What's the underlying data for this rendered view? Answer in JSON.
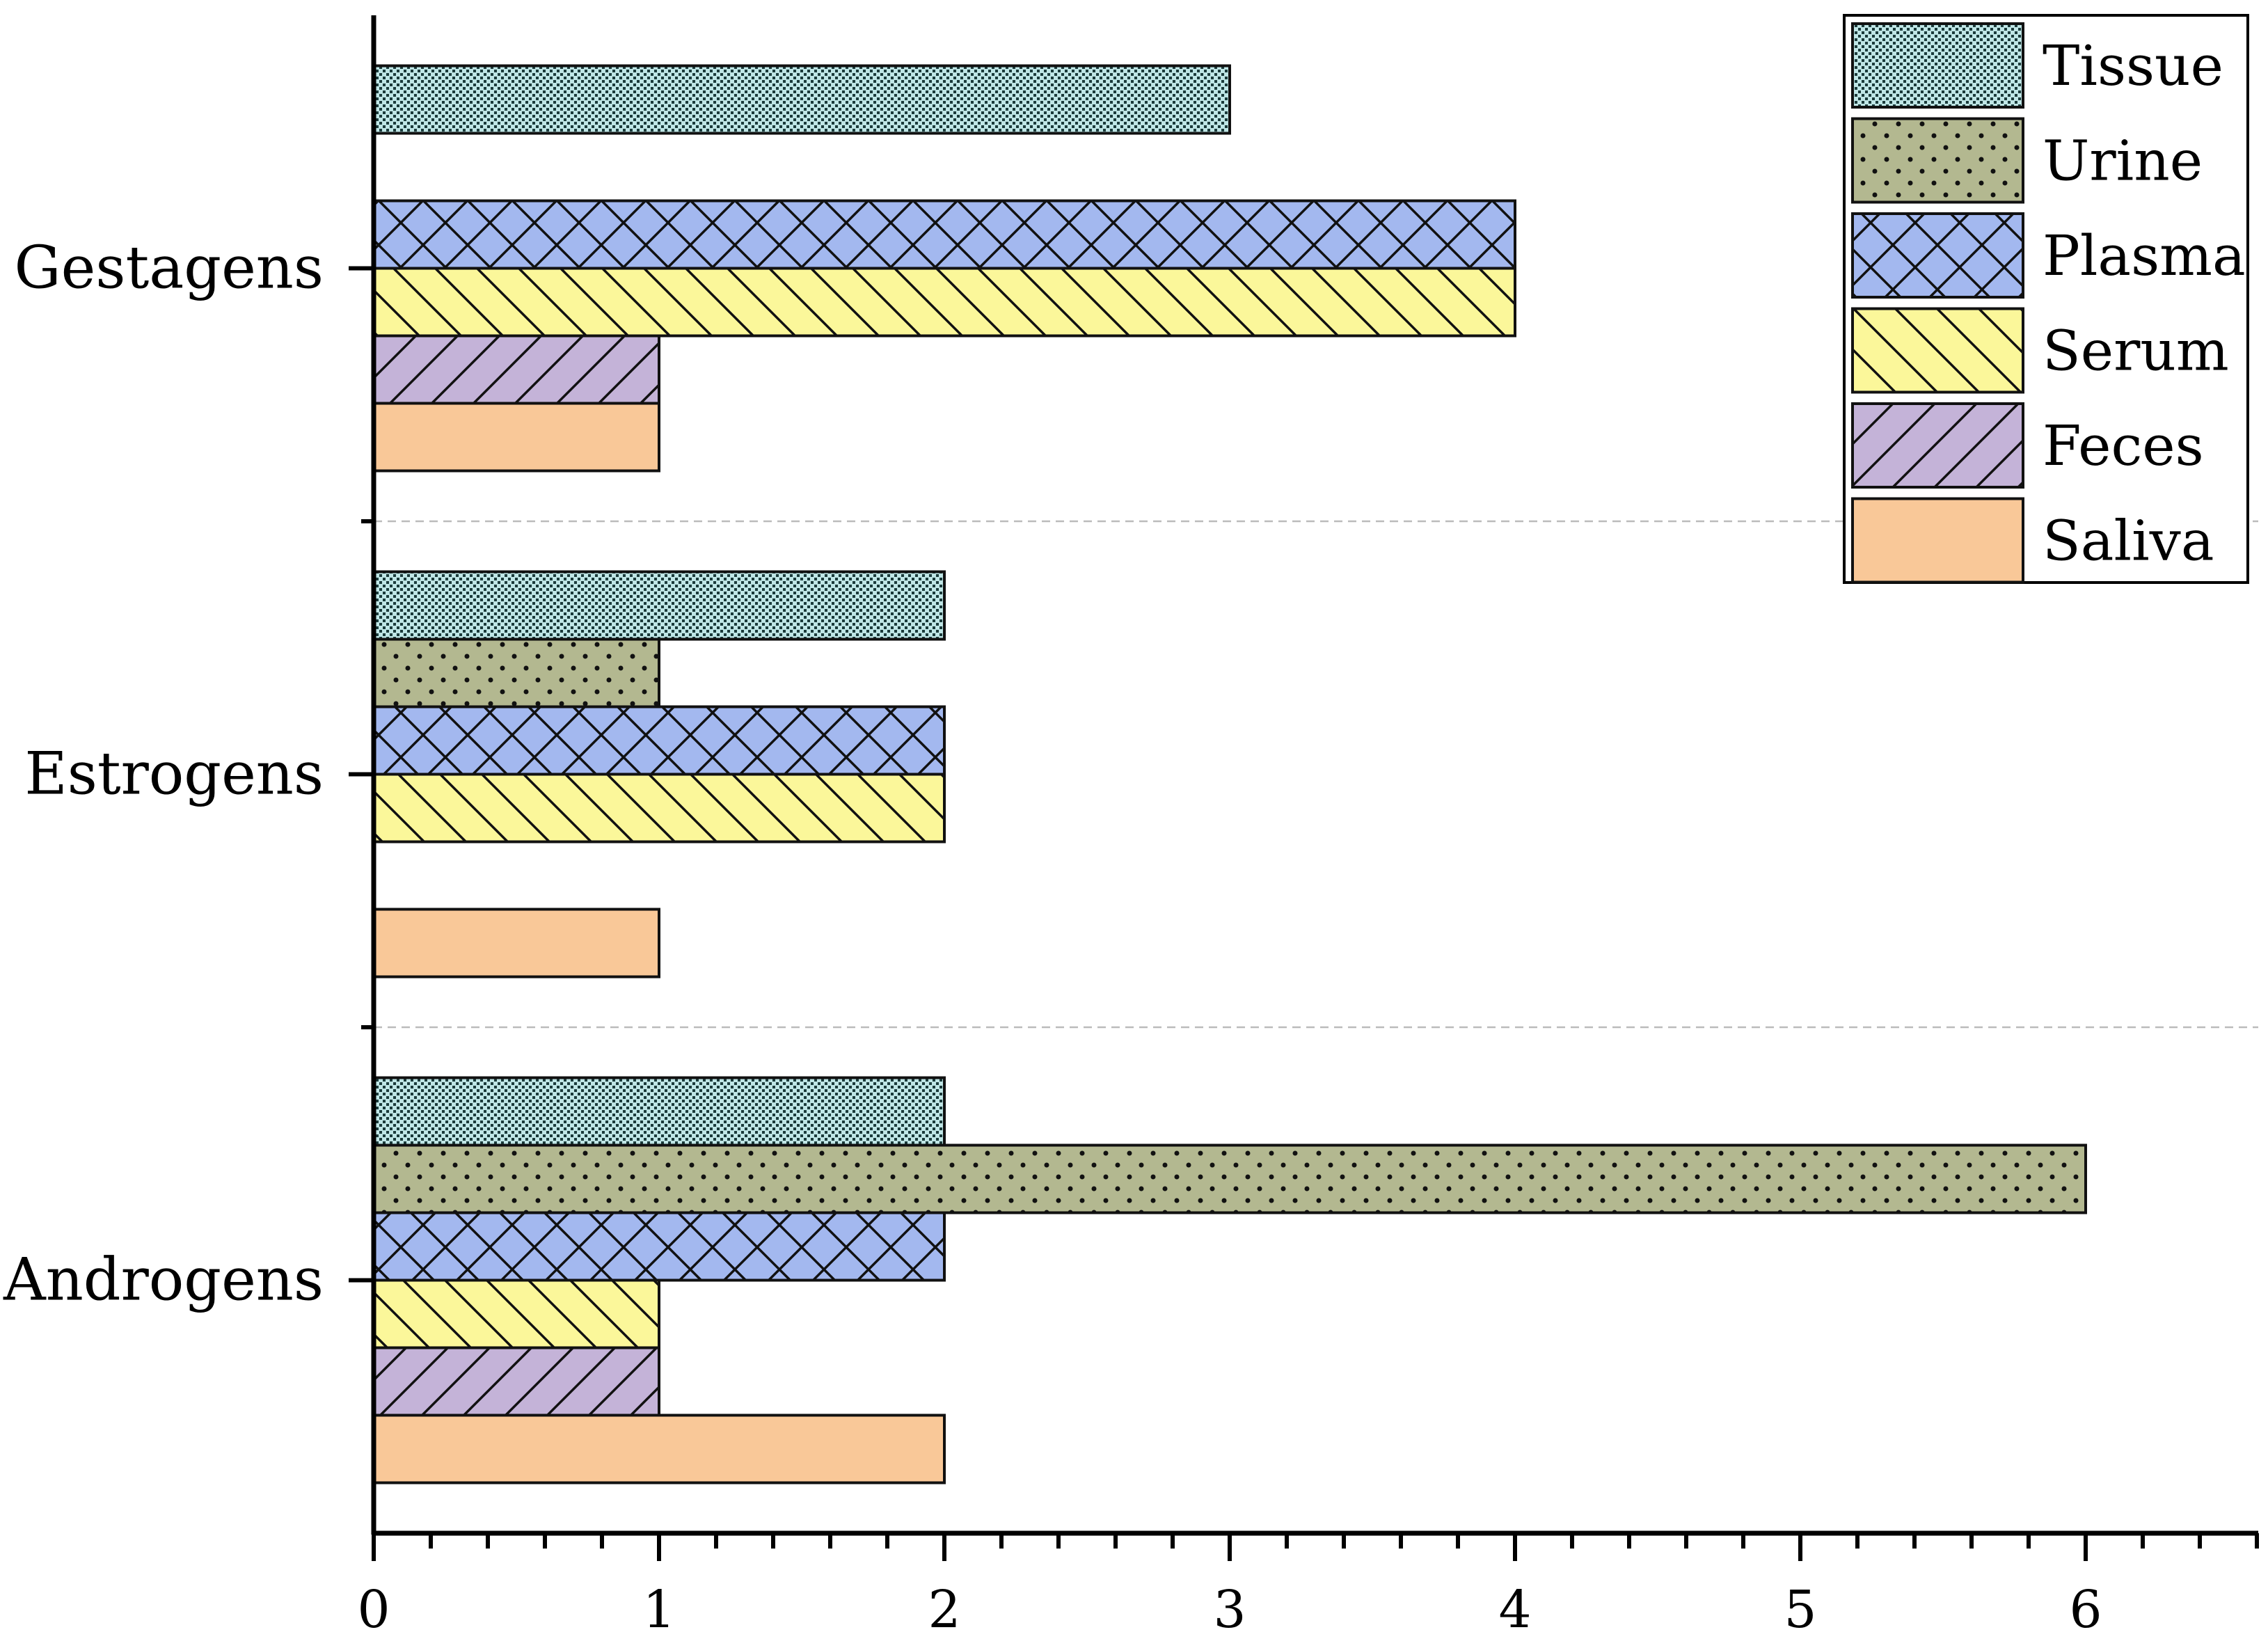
{
  "chart_data": {
    "type": "bar",
    "orientation": "horizontal",
    "title": "",
    "xlabel": "",
    "ylabel": "",
    "xlim": [
      0,
      6.6
    ],
    "x_ticks": [
      "0",
      "1",
      "2",
      "3",
      "4",
      "5",
      "6"
    ],
    "categories": [
      "Gestagens",
      "Estrogens",
      "Androgens"
    ],
    "series": [
      {
        "name": "Tissue",
        "values": [
          3,
          2,
          2
        ],
        "color": "#bfe6e6",
        "pattern": "dense-dots"
      },
      {
        "name": "Urine",
        "values": [
          0,
          1,
          6
        ],
        "color": "#b3b890",
        "pattern": "sparse-dots"
      },
      {
        "name": "Plasma",
        "values": [
          4,
          2,
          2
        ],
        "color": "#a3b8ef",
        "pattern": "crosshatch"
      },
      {
        "name": "Serum",
        "values": [
          4,
          2,
          1
        ],
        "color": "#fbf79a",
        "pattern": "back-diagonal"
      },
      {
        "name": "Feces",
        "values": [
          1,
          0,
          1
        ],
        "color": "#c4b3d8",
        "pattern": "forward-diagonal"
      },
      {
        "name": "Saliva",
        "values": [
          1,
          1,
          2
        ],
        "color": "#f9c898",
        "pattern": "solid"
      }
    ],
    "legend_position": "top-right",
    "grid": "dashed separators between categories"
  }
}
